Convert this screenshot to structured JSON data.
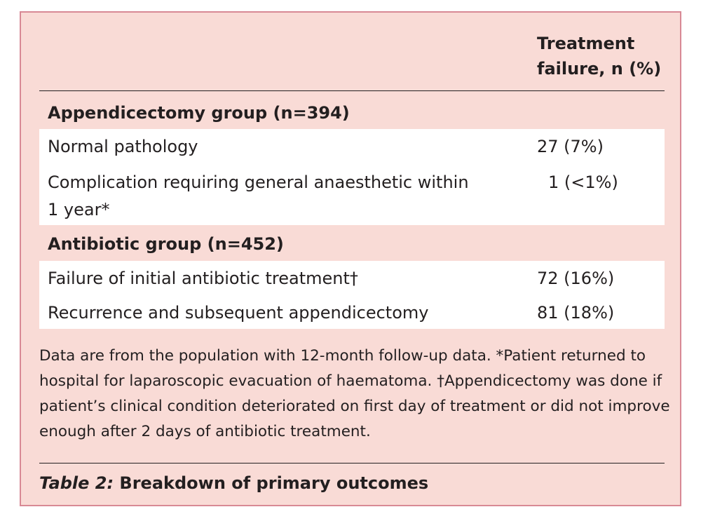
{
  "table": {
    "column_header": "Treatment\nfailure, n (%)",
    "groups": [
      {
        "heading": "Appendicectomy group (n=394)",
        "rows": [
          {
            "label": "Normal pathology",
            "value": "27 (7%)"
          },
          {
            "label": "Complication requiring general anaesthetic within 1 year*",
            "value": "1 (<1%)"
          }
        ]
      },
      {
        "heading": "Antibiotic group (n=452)",
        "rows": [
          {
            "label": "Failure of initial antibiotic treatment†",
            "value": "72 (16%)"
          },
          {
            "label": "Recurrence and subsequent appendicectomy",
            "value": "81 (18%)"
          }
        ]
      }
    ]
  },
  "footnote": "Data are from the population with 12-month follow-up data. *Patient returned to hospital for laparoscopic evacuation of haematoma. †Appendicectomy was done if patient’s clinical condition deteriorated on first day of treatment or did not improve enough after 2 days of antibiotic treatment.",
  "caption": {
    "label": "Table 2:",
    "title": "Breakdown of primary outcomes"
  },
  "colors": {
    "panel_background": "#f9dbd6",
    "panel_border": "#d88995",
    "row_background": "#ffffff",
    "text": "#231f20"
  }
}
